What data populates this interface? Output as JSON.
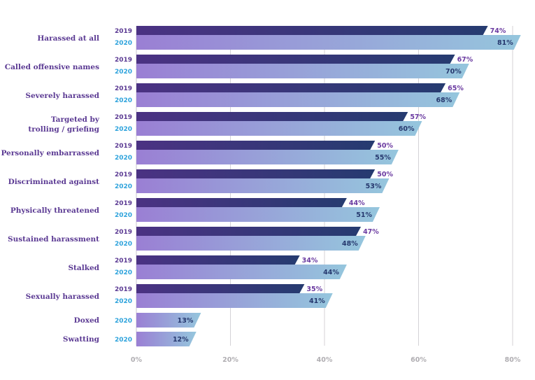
{
  "chart_data": {
    "type": "bar",
    "orientation": "horizontal",
    "categories": [
      "Harassed at all",
      "Called offensive names",
      "Severely harassed",
      "Targeted by\ntrolling / griefing",
      "Personally embarrassed",
      "Discriminated against",
      "Physically threatened",
      "Sustained harassment",
      "Stalked",
      "Sexually harassed",
      "Doxed",
      "Swatting"
    ],
    "series": [
      {
        "name": "2019",
        "values": [
          74,
          67,
          65,
          57,
          50,
          50,
          44,
          47,
          34,
          35,
          null,
          null
        ]
      },
      {
        "name": "2020",
        "values": [
          81,
          70,
          68,
          60,
          55,
          53,
          51,
          48,
          44,
          41,
          13,
          12
        ]
      }
    ],
    "value_suffix": "%",
    "xlim": [
      0,
      80
    ],
    "xticks": [
      "0%",
      "20%",
      "40%",
      "60%",
      "80%"
    ],
    "grid": true,
    "colors": {
      "2019_label": "#5b3a93",
      "2020_label": "#2ea3dc",
      "2019_bar_start": "#4b3283",
      "2019_bar_end": "#263b70",
      "2020_bar_start": "#9a7fd4",
      "2020_bar_end": "#95c6dd",
      "2019_value": "#6a3aa0",
      "2020_value": "#26386e"
    }
  }
}
